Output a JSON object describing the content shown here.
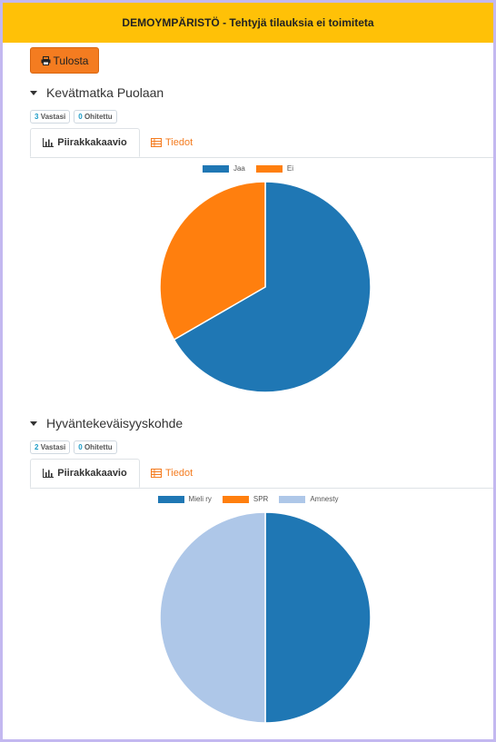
{
  "banner": {
    "text": "DEMOYMPÄRISTÖ - Tehtyjä tilauksia ei toimiteta"
  },
  "toolbar": {
    "print_label": "Tulosta"
  },
  "sections": [
    {
      "title": "Kevätmatka Puolaan",
      "answered_count": "3",
      "answered_label": "Vastasi",
      "skipped_count": "0",
      "skipped_label": "Ohitettu",
      "tab_chart": "Piirakkakaavio",
      "tab_details": "Tiedot"
    },
    {
      "title": "Hyväntekeväisyyskohde",
      "answered_count": "2",
      "answered_label": "Vastasi",
      "skipped_count": "0",
      "skipped_label": "Ohitettu",
      "tab_chart": "Piirakkakaavio",
      "tab_details": "Tiedot"
    }
  ],
  "chart_data": [
    {
      "type": "pie",
      "categories": [
        "Jaa",
        "Ei"
      ],
      "values": [
        2,
        1
      ],
      "colors": [
        "#1f77b4",
        "#ff7f0e"
      ],
      "legend_position": "top"
    },
    {
      "type": "pie",
      "categories": [
        "Mieli ry",
        "SPR",
        "Amnesty"
      ],
      "values": [
        1,
        0,
        1
      ],
      "colors": [
        "#1f77b4",
        "#ff7f0e",
        "#aec7e8"
      ],
      "legend_position": "top"
    }
  ]
}
